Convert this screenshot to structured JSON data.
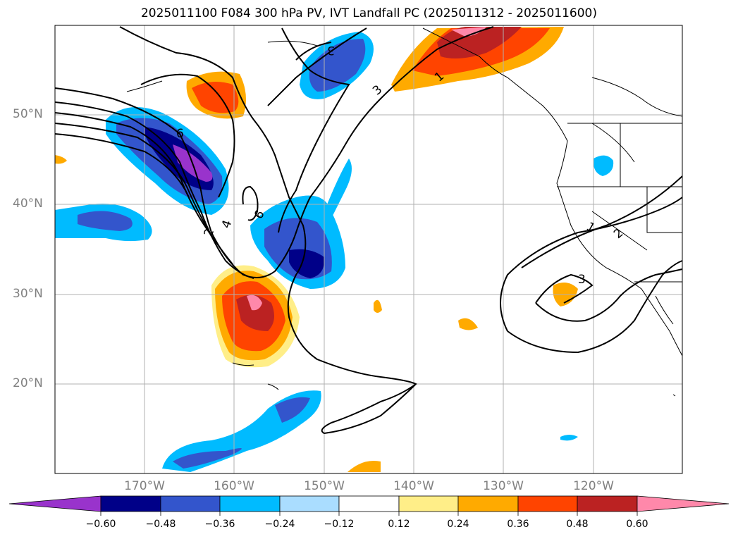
{
  "title": "2025011100 F084 300 hPa PV, IVT Landfall PC (2025011312 - 2025011600)",
  "lat_labels": [
    "50°N",
    "40°N",
    "30°N",
    "20°N"
  ],
  "lon_labels": [
    "170°W",
    "160°W",
    "150°W",
    "140°W",
    "130°W",
    "120°W"
  ],
  "colorbar": {
    "colors": [
      "#9933cc",
      "#000088",
      "#3355cc",
      "#00bbff",
      "#aaddff",
      "#ffffff",
      "#ffee88",
      "#ffaa00",
      "#ff4400",
      "#bb2222",
      "#ff88aa"
    ],
    "tick_labels": [
      "−0.60",
      "−0.48",
      "−0.36",
      "−0.24",
      "−0.12",
      "0.12",
      "0.24",
      "0.36",
      "0.48",
      "0.60"
    ]
  },
  "contour_labels": [
    "6",
    "3",
    "1",
    "2",
    "4",
    "6",
    "1",
    "2",
    "3"
  ]
}
